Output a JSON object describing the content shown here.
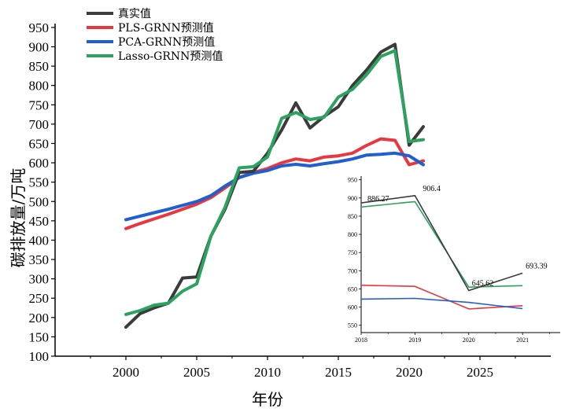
{
  "chart_data": [
    {
      "type": "line",
      "xlabel": "年份",
      "ylabel": "碳排放量/万吨",
      "xlim": [
        1995,
        2030
      ],
      "ylim": [
        100,
        960
      ],
      "xticks": [
        2000,
        2005,
        2010,
        2015,
        2020,
        2025
      ],
      "yticks": [
        100,
        150,
        200,
        250,
        300,
        350,
        400,
        450,
        500,
        550,
        600,
        650,
        700,
        750,
        800,
        850,
        900,
        950
      ],
      "x": [
        2000,
        2001,
        2002,
        2003,
        2004,
        2005,
        2006,
        2007,
        2008,
        2009,
        2010,
        2011,
        2012,
        2013,
        2014,
        2015,
        2016,
        2017,
        2018,
        2019,
        2020,
        2021
      ],
      "series": [
        {
          "name": "真实值",
          "color": "#3b3b3b",
          "values": [
            175,
            210,
            225,
            237,
            302,
            305,
            410,
            480,
            575,
            578,
            625,
            685,
            755,
            690,
            720,
            745,
            800,
            840,
            886.27,
            906.4,
            645.62,
            693.39
          ]
        },
        {
          "name": "PLS-GRNN预测值",
          "color": "#e8373f",
          "values": [
            430,
            443,
            455,
            467,
            480,
            493,
            510,
            535,
            562,
            575,
            585,
            600,
            610,
            605,
            615,
            618,
            625,
            645,
            662,
            658,
            595,
            605
          ]
        },
        {
          "name": "PCA-GRNN预测值",
          "color": "#1f5fd1",
          "values": [
            453,
            462,
            471,
            480,
            490,
            500,
            515,
            540,
            562,
            573,
            580,
            592,
            596,
            592,
            598,
            603,
            610,
            620,
            622,
            625,
            618,
            595
          ]
        },
        {
          "name": "Lasso-GRNN预测值",
          "color": "#2ca25f",
          "values": [
            208,
            218,
            232,
            237,
            268,
            287,
            410,
            485,
            587,
            590,
            615,
            715,
            730,
            712,
            718,
            770,
            790,
            828,
            875,
            890,
            655,
            660
          ]
        }
      ],
      "legend_position": "top-left"
    },
    {
      "type": "line",
      "inset": true,
      "xlim": [
        2018,
        2021.7
      ],
      "ylim": [
        530,
        960
      ],
      "xticks": [
        2018,
        2019,
        2020,
        2021
      ],
      "yticks": [
        550,
        600,
        650,
        700,
        750,
        800,
        850,
        900,
        950
      ],
      "x": [
        2018,
        2019,
        2020,
        2021
      ],
      "series": [
        {
          "name": "真实值",
          "color": "#3b3b3b",
          "values": [
            886.27,
            906.4,
            645.62,
            693.39
          ]
        },
        {
          "name": "PLS-GRNN预测值",
          "color": "#e8373f",
          "values": [
            660,
            657,
            595,
            604
          ]
        },
        {
          "name": "PCA-GRNN预测值",
          "color": "#1f5fd1",
          "values": [
            622,
            624,
            613,
            596
          ]
        },
        {
          "name": "Lasso-GRNN预测值",
          "color": "#2ca25f",
          "values": [
            875,
            890,
            655,
            659
          ]
        }
      ],
      "annotations": [
        "886.27",
        "906.4",
        "645.62",
        "693.39"
      ]
    }
  ]
}
